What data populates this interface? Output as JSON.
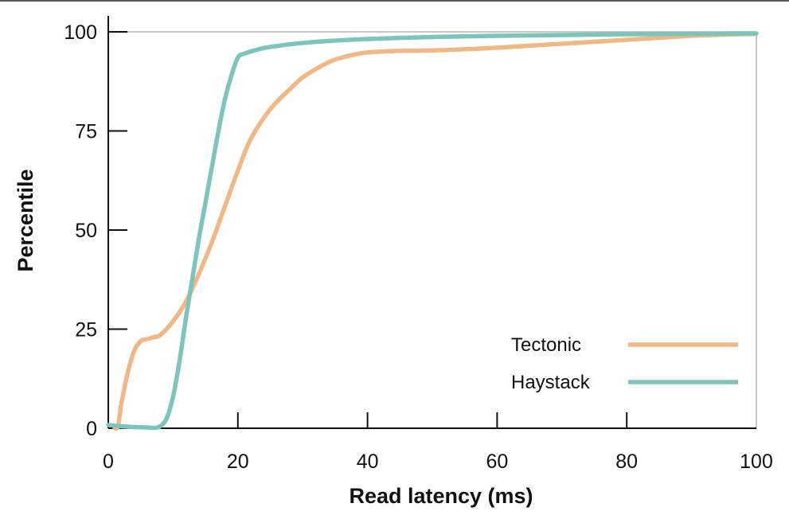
{
  "chart_data": {
    "type": "line",
    "xlabel": "Read latency (ms)",
    "ylabel": "Percentile",
    "xlim": [
      0,
      100
    ],
    "ylim": [
      0,
      100
    ],
    "xticks": [
      0,
      20,
      40,
      60,
      80,
      100
    ],
    "yticks": [
      0,
      25,
      50,
      75,
      100
    ],
    "grid": false,
    "legend": "bottom-right",
    "series": [
      {
        "name": "Tectonic",
        "color": "#EFB887",
        "x": [
          1,
          1.5,
          2,
          3,
          4,
          5,
          6,
          7,
          8,
          10,
          12,
          14,
          16,
          18,
          20,
          22,
          25,
          28,
          30,
          33,
          35,
          38,
          40,
          42,
          45,
          50,
          55,
          60,
          65,
          70,
          75,
          80,
          85,
          90,
          95,
          100
        ],
        "y": [
          0,
          0.5,
          6,
          14,
          19.5,
          22,
          22.5,
          23,
          23.5,
          27,
          32,
          39,
          47,
          56,
          65,
          73,
          80.5,
          85.5,
          88.5,
          91.5,
          93,
          94.3,
          94.8,
          95,
          95.2,
          95.3,
          95.6,
          96,
          96.5,
          97,
          97.5,
          98,
          98.5,
          99,
          99.3,
          99.5
        ]
      },
      {
        "name": "Haystack",
        "color": "#7DC5BB",
        "x": [
          0,
          2,
          4,
          6,
          7,
          8,
          9,
          10,
          11,
          12,
          13,
          14,
          15,
          16,
          17,
          18,
          19,
          20,
          21,
          23,
          25,
          30,
          35,
          40,
          50,
          60,
          70,
          80,
          90,
          100
        ],
        "y": [
          0.8,
          0.5,
          0.3,
          0.2,
          0.1,
          0.5,
          2.5,
          8,
          17,
          28,
          38,
          48,
          57,
          66,
          75,
          83,
          89,
          93.5,
          94.5,
          95.5,
          96.2,
          97.2,
          97.8,
          98.2,
          98.7,
          99,
          99.2,
          99.4,
          99.5,
          99.6
        ]
      }
    ]
  }
}
